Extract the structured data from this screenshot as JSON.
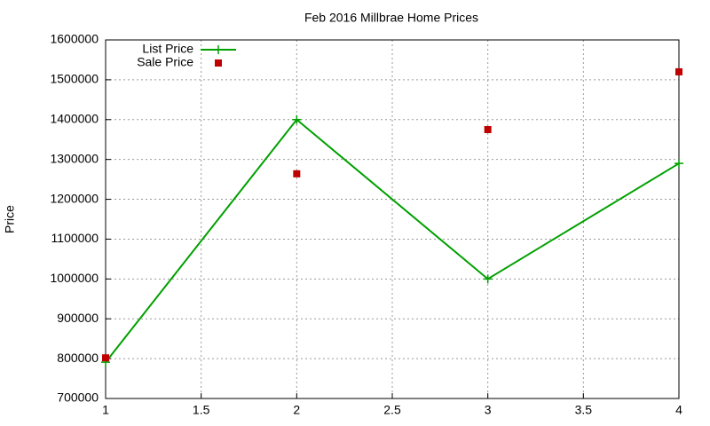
{
  "chart_data": {
    "type": "line",
    "title": "Feb 2016 Millbrae Home Prices",
    "y_label": "Price",
    "x": [
      1,
      2,
      3,
      4
    ],
    "series": [
      {
        "name": "List Price",
        "color": "#00a000",
        "mode": "linespoints",
        "values": [
          791000,
          1400000,
          1000000,
          1290000
        ]
      },
      {
        "name": "Sale Price",
        "color": "#c00000",
        "mode": "points",
        "values": [
          802000,
          1264000,
          1375000,
          1520000
        ]
      }
    ],
    "xlim": [
      1,
      4
    ],
    "xticks": [
      1,
      1.5,
      2,
      2.5,
      3,
      3.5,
      4
    ],
    "ylim": [
      700000,
      1600000
    ],
    "yticks": [
      700000,
      800000,
      900000,
      1000000,
      1100000,
      1200000,
      1300000,
      1400000,
      1500000,
      1600000
    ],
    "grid": true,
    "legend": "top-left"
  }
}
